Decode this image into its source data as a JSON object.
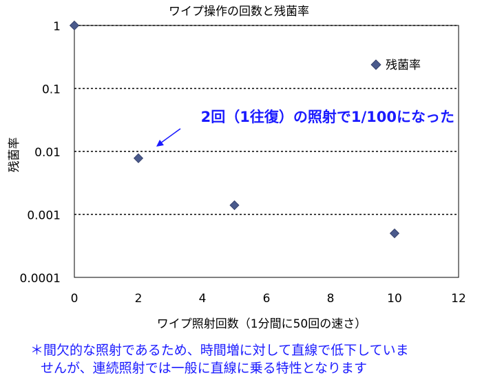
{
  "chart_data": {
    "type": "scatter",
    "title": "ワイプ操作の回数と残菌率",
    "xlabel": "ワイプ照射回数（1分間に50回の速さ）",
    "ylabel": "残菌率",
    "x_scale": "linear",
    "y_scale": "log",
    "xlim": [
      0,
      12
    ],
    "ylim": [
      0.0001,
      1
    ],
    "x_ticks": [
      0,
      2,
      4,
      6,
      8,
      10,
      12
    ],
    "y_ticks": [
      "1",
      "0.1",
      "0.01",
      "0.001",
      "0.0001"
    ],
    "grid": "horizontal dotted lines at 1, 0.1, 0.01, 0.001",
    "legend": {
      "position": "top-right",
      "entries": [
        "残菌率"
      ]
    },
    "series": [
      {
        "name": "残菌率",
        "marker": "diamond",
        "color": "#4a5a8c",
        "points": [
          {
            "x": 0,
            "y": 1
          },
          {
            "x": 2,
            "y": 0.0078
          },
          {
            "x": 5,
            "y": 0.0014
          },
          {
            "x": 10,
            "y": 0.0005
          }
        ]
      }
    ],
    "annotation": {
      "text": "2回（1往復）の照射で1/100になった",
      "color": "#1a1aff",
      "points_to": {
        "x": 2.6,
        "y": 0.0095
      }
    }
  },
  "footnote": {
    "line1": "＊間欠的な照射であるため、時間増に対して直線で低下していま",
    "line2": "せんが、連続照射では一般に直線に乗る特性となります"
  }
}
